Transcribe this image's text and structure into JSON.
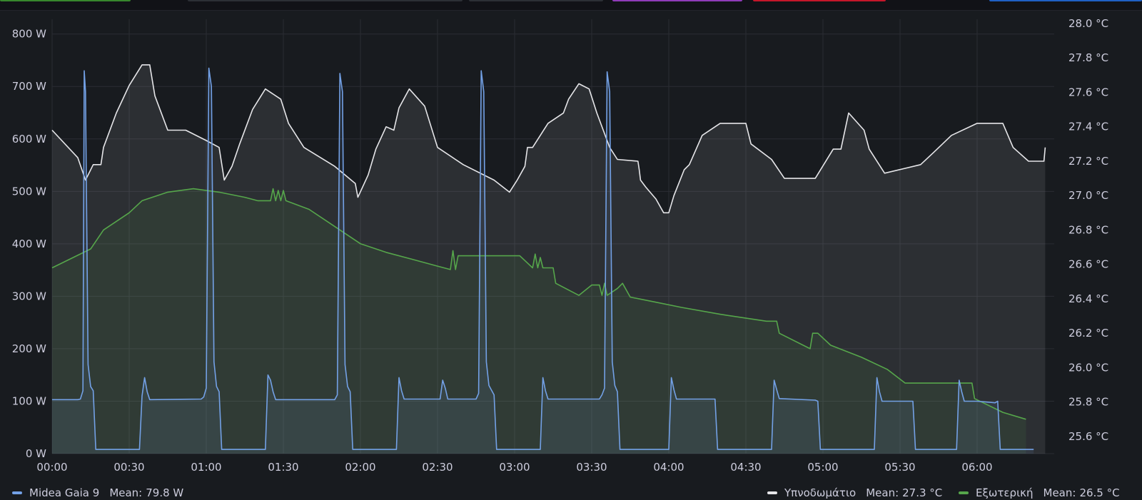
{
  "toolbar": {
    "tab_colors": [
      "#37872d",
      "#2c2f35",
      "#2c2f35",
      "#8f3bb8",
      "#c4162a",
      "#1f60c4"
    ]
  },
  "legend": {
    "items": [
      {
        "name": "Midea Gaia 9",
        "mean_label": "Mean:",
        "mean_value": "79.8 W",
        "color": "#73a1e6"
      },
      {
        "name": "Υπνοδωμάτιο",
        "mean_label": "Mean:",
        "mean_value": "27.3 °C",
        "color": "#e6e6e9"
      },
      {
        "name": "Εξωτερική",
        "mean_label": "Mean:",
        "mean_value": "26.5 °C",
        "color": "#56a64b"
      }
    ]
  },
  "chart_data": {
    "type": "line",
    "x_unit": "time (HH:MM)",
    "x_range": [
      "00:00",
      "06:30"
    ],
    "x_ticks": [
      "00:00",
      "00:30",
      "01:00",
      "01:30",
      "02:00",
      "02:30",
      "03:00",
      "03:30",
      "04:00",
      "04:30",
      "05:00",
      "05:30",
      "06:00"
    ],
    "y_left": {
      "unit": "W",
      "range": [
        0,
        800
      ],
      "ticks": [
        "0 W",
        "100 W",
        "200 W",
        "300 W",
        "400 W",
        "500 W",
        "600 W",
        "700 W",
        "800 W"
      ]
    },
    "y_right": {
      "unit": "°C",
      "range": [
        25.5,
        28.0
      ],
      "ticks": [
        "25.6 °C",
        "25.8 °C",
        "26.0 °C",
        "26.2 °C",
        "26.4 °C",
        "26.6 °C",
        "26.8 °C",
        "27.0 °C",
        "27.2 °C",
        "27.4 °C",
        "27.6 °C",
        "27.8 °C",
        "28.0 °C"
      ]
    },
    "grid": true,
    "legend_position": "bottom",
    "series": [
      {
        "name": "Midea Gaia 9",
        "axis": "left",
        "color": "#73a1e6",
        "points": [
          [
            "00:00",
            103
          ],
          [
            "00:10",
            103
          ],
          [
            "00:11",
            104
          ],
          [
            "00:12",
            120
          ],
          [
            "00:12.5",
            730
          ],
          [
            "00:13",
            690
          ],
          [
            "00:14",
            170
          ],
          [
            "00:15",
            128
          ],
          [
            "00:16",
            120
          ],
          [
            "00:17",
            8
          ],
          [
            "00:34",
            8
          ],
          [
            "00:35",
            110
          ],
          [
            "00:36",
            145
          ],
          [
            "00:37",
            118
          ],
          [
            "00:38",
            103
          ],
          [
            "00:58",
            104
          ],
          [
            "00:59",
            108
          ],
          [
            "01:00",
            125
          ],
          [
            "01:01",
            735
          ],
          [
            "01:02",
            700
          ],
          [
            "01:03",
            175
          ],
          [
            "01:04",
            128
          ],
          [
            "01:05",
            118
          ],
          [
            "01:06",
            8
          ],
          [
            "01:23",
            8
          ],
          [
            "01:24",
            150
          ],
          [
            "01:25",
            140
          ],
          [
            "01:26",
            118
          ],
          [
            "01:27",
            103
          ],
          [
            "01:50",
            103
          ],
          [
            "01:51",
            112
          ],
          [
            "01:52",
            725
          ],
          [
            "01:53",
            690
          ],
          [
            "01:54",
            170
          ],
          [
            "01:55",
            128
          ],
          [
            "01:56",
            118
          ],
          [
            "01:57",
            8
          ],
          [
            "02:14",
            8
          ],
          [
            "02:15",
            145
          ],
          [
            "02:16",
            120
          ],
          [
            "02:17",
            104
          ],
          [
            "02:31",
            104
          ],
          [
            "02:32",
            140
          ],
          [
            "02:33",
            125
          ],
          [
            "02:34",
            104
          ],
          [
            "02:45",
            104
          ],
          [
            "02:46",
            115
          ],
          [
            "02:47",
            730
          ],
          [
            "02:48",
            690
          ],
          [
            "02:49",
            175
          ],
          [
            "02:50",
            130
          ],
          [
            "02:52",
            112
          ],
          [
            "02:53",
            8
          ],
          [
            "03:10",
            8
          ],
          [
            "03:11",
            145
          ],
          [
            "03:12",
            120
          ],
          [
            "03:13",
            104
          ],
          [
            "03:33",
            104
          ],
          [
            "03:34",
            112
          ],
          [
            "03:35",
            125
          ],
          [
            "03:36",
            728
          ],
          [
            "03:37",
            690
          ],
          [
            "03:38",
            175
          ],
          [
            "03:39",
            130
          ],
          [
            "03:40",
            118
          ],
          [
            "03:41",
            8
          ],
          [
            "04:00",
            8
          ],
          [
            "04:01",
            145
          ],
          [
            "04:02",
            122
          ],
          [
            "04:03",
            104
          ],
          [
            "04:18",
            104
          ],
          [
            "04:19",
            8
          ],
          [
            "04:40",
            8
          ],
          [
            "04:41",
            140
          ],
          [
            "04:42",
            122
          ],
          [
            "04:43",
            105
          ],
          [
            "04:57",
            102
          ],
          [
            "04:58",
            100
          ],
          [
            "04:59",
            8
          ],
          [
            "05:20",
            8
          ],
          [
            "05:21",
            145
          ],
          [
            "05:22",
            118
          ],
          [
            "05:23",
            100
          ],
          [
            "05:35",
            100
          ],
          [
            "05:36",
            8
          ],
          [
            "05:52",
            8
          ],
          [
            "05:53",
            140
          ],
          [
            "05:54",
            118
          ],
          [
            "05:55",
            100
          ],
          [
            "06:00",
            100
          ],
          [
            "06:07",
            97
          ],
          [
            "06:08",
            100
          ],
          [
            "06:09",
            8
          ],
          [
            "06:22",
            8
          ]
        ]
      },
      {
        "name": "Υπνοδωμάτιο",
        "axis": "right",
        "color": "#e6e6e9",
        "points": [
          [
            "00:00",
            27.38
          ],
          [
            "00:10",
            27.22
          ],
          [
            "00:13",
            27.09
          ],
          [
            "00:16",
            27.18
          ],
          [
            "00:19",
            27.18
          ],
          [
            "00:20",
            27.28
          ],
          [
            "00:25",
            27.48
          ],
          [
            "00:30",
            27.64
          ],
          [
            "00:35",
            27.76
          ],
          [
            "00:38",
            27.76
          ],
          [
            "00:40",
            27.58
          ],
          [
            "00:45",
            27.38
          ],
          [
            "00:52",
            27.38
          ],
          [
            "01:00",
            27.32
          ],
          [
            "01:05",
            27.28
          ],
          [
            "01:07",
            27.09
          ],
          [
            "01:10",
            27.17
          ],
          [
            "01:13",
            27.3
          ],
          [
            "01:18",
            27.5
          ],
          [
            "01:23",
            27.62
          ],
          [
            "01:29",
            27.56
          ],
          [
            "01:32",
            27.42
          ],
          [
            "01:38",
            27.28
          ],
          [
            "01:50",
            27.17
          ],
          [
            "01:58",
            27.07
          ],
          [
            "01:59",
            26.99
          ],
          [
            "02:03",
            27.12
          ],
          [
            "02:06",
            27.27
          ],
          [
            "02:10",
            27.4
          ],
          [
            "02:13",
            27.38
          ],
          [
            "02:15",
            27.51
          ],
          [
            "02:19",
            27.62
          ],
          [
            "02:25",
            27.52
          ],
          [
            "02:30",
            27.28
          ],
          [
            "02:40",
            27.18
          ],
          [
            "02:52",
            27.09
          ],
          [
            "02:58",
            27.02
          ],
          [
            "03:01",
            27.09
          ],
          [
            "03:04",
            27.17
          ],
          [
            "03:05",
            27.28
          ],
          [
            "03:07",
            27.28
          ],
          [
            "03:10",
            27.35
          ],
          [
            "03:13",
            27.42
          ],
          [
            "03:16",
            27.45
          ],
          [
            "03:19",
            27.48
          ],
          [
            "03:21",
            27.56
          ],
          [
            "03:25",
            27.65
          ],
          [
            "03:29",
            27.62
          ],
          [
            "03:32",
            27.48
          ],
          [
            "03:37",
            27.28
          ],
          [
            "03:40",
            27.21
          ],
          [
            "03:48",
            27.2
          ],
          [
            "03:48.5",
            27.15
          ],
          [
            "03:49",
            27.09
          ],
          [
            "03:51",
            27.05
          ],
          [
            "03:55",
            26.98
          ],
          [
            "03:58",
            26.9
          ],
          [
            "04:00",
            26.9
          ],
          [
            "04:02",
            27.0
          ],
          [
            "04:06",
            27.15
          ],
          [
            "04:08",
            27.18
          ],
          [
            "04:13",
            27.35
          ],
          [
            "04:20",
            27.42
          ],
          [
            "04:30",
            27.42
          ],
          [
            "04:32",
            27.3
          ],
          [
            "04:40",
            27.21
          ],
          [
            "04:45",
            27.1
          ],
          [
            "04:57",
            27.1
          ],
          [
            "05:04",
            27.27
          ],
          [
            "05:07",
            27.27
          ],
          [
            "05:10",
            27.48
          ],
          [
            "05:16",
            27.38
          ],
          [
            "05:18",
            27.27
          ],
          [
            "05:24",
            27.13
          ],
          [
            "05:38",
            27.18
          ],
          [
            "05:43",
            27.25
          ],
          [
            "05:50",
            27.35
          ],
          [
            "06:00",
            27.42
          ],
          [
            "06:10",
            27.42
          ],
          [
            "06:14",
            27.28
          ],
          [
            "06:20",
            27.2
          ],
          [
            "06:26",
            27.2
          ],
          [
            "06:26.5",
            27.28
          ]
        ]
      },
      {
        "name": "Εξωτερική",
        "axis": "right",
        "color": "#56a64b",
        "points": [
          [
            "00:00",
            26.58
          ],
          [
            "00:15",
            26.69
          ],
          [
            "00:20",
            26.8
          ],
          [
            "00:30",
            26.9
          ],
          [
            "00:35",
            26.97
          ],
          [
            "00:45",
            27.02
          ],
          [
            "00:55",
            27.04
          ],
          [
            "01:05",
            27.02
          ],
          [
            "01:15",
            26.99
          ],
          [
            "01:20",
            26.97
          ],
          [
            "01:25",
            26.97
          ],
          [
            "01:26",
            27.04
          ],
          [
            "01:27",
            26.97
          ],
          [
            "01:28",
            27.03
          ],
          [
            "01:29",
            26.97
          ],
          [
            "01:30",
            27.03
          ],
          [
            "01:31",
            26.97
          ],
          [
            "01:40",
            26.92
          ],
          [
            "01:50",
            26.82
          ],
          [
            "02:00",
            26.72
          ],
          [
            "02:10",
            26.67
          ],
          [
            "02:20",
            26.63
          ],
          [
            "02:30",
            26.59
          ],
          [
            "02:35",
            26.57
          ],
          [
            "02:36",
            26.68
          ],
          [
            "02:37",
            26.57
          ],
          [
            "02:38",
            26.65
          ],
          [
            "02:39",
            26.65
          ],
          [
            "02:50",
            26.65
          ],
          [
            "03:02",
            26.65
          ],
          [
            "03:07",
            26.58
          ],
          [
            "03:08",
            26.66
          ],
          [
            "03:09",
            26.58
          ],
          [
            "03:10",
            26.64
          ],
          [
            "03:11",
            26.58
          ],
          [
            "03:15",
            26.58
          ],
          [
            "03:16",
            26.49
          ],
          [
            "03:25",
            26.42
          ],
          [
            "03:30",
            26.48
          ],
          [
            "03:33",
            26.48
          ],
          [
            "03:34",
            26.42
          ],
          [
            "03:35",
            26.49
          ],
          [
            "03:36",
            26.42
          ],
          [
            "03:40",
            26.46
          ],
          [
            "03:42",
            26.49
          ],
          [
            "03:45",
            26.41
          ],
          [
            "03:55",
            26.38
          ],
          [
            "04:05",
            26.35
          ],
          [
            "04:20",
            26.31
          ],
          [
            "04:38",
            26.27
          ],
          [
            "04:42",
            26.27
          ],
          [
            "04:43",
            26.2
          ],
          [
            "04:55",
            26.11
          ],
          [
            "04:56",
            26.2
          ],
          [
            "04:58",
            26.2
          ],
          [
            "05:03",
            26.13
          ],
          [
            "05:15",
            26.06
          ],
          [
            "05:25",
            25.99
          ],
          [
            "05:32",
            25.91
          ],
          [
            "05:58",
            25.91
          ],
          [
            "05:59",
            25.82
          ],
          [
            "06:10",
            25.74
          ],
          [
            "06:19",
            25.7
          ]
        ]
      }
    ]
  }
}
